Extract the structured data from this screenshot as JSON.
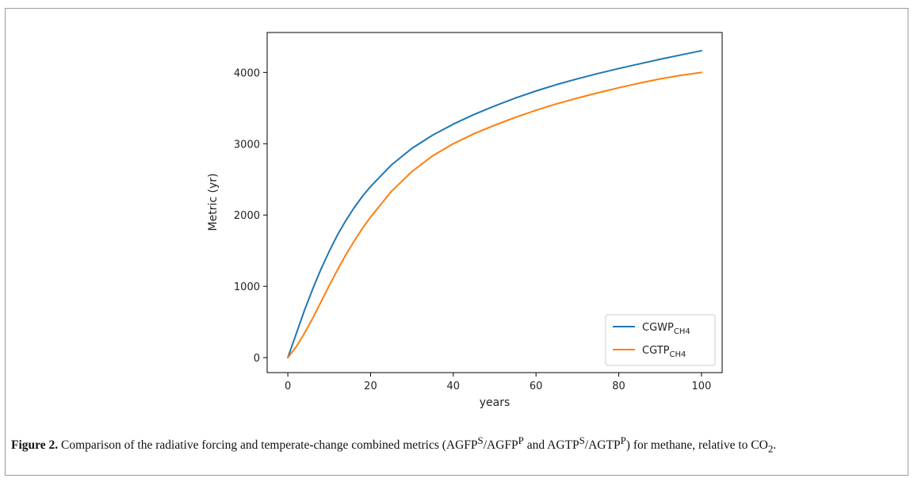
{
  "chart_data": {
    "type": "line",
    "xlabel": "years",
    "ylabel": "Metric (yr)",
    "xlim": [
      -5,
      105
    ],
    "ylim": [
      -210,
      4560
    ],
    "xticks": [
      0,
      20,
      40,
      60,
      80,
      100
    ],
    "yticks": [
      0,
      1000,
      2000,
      3000,
      4000
    ],
    "grid": false,
    "legend_position": "lower-right",
    "x": [
      0,
      2,
      4,
      6,
      8,
      10,
      12,
      14,
      16,
      18,
      20,
      25,
      30,
      35,
      40,
      45,
      50,
      55,
      60,
      65,
      70,
      75,
      80,
      85,
      90,
      95,
      100
    ],
    "series": [
      {
        "name": "CGWP",
        "subscript": "CH4",
        "color": "#1f77b4",
        "values": [
          0,
          330,
          660,
          960,
          1240,
          1490,
          1720,
          1920,
          2100,
          2260,
          2400,
          2700,
          2935,
          3120,
          3275,
          3410,
          3530,
          3640,
          3740,
          3830,
          3910,
          3985,
          4055,
          4120,
          4185,
          4245,
          4305
        ]
      },
      {
        "name": "CGTP",
        "subscript": "CH4",
        "color": "#ff7f0e",
        "values": [
          0,
          150,
          340,
          550,
          780,
          1010,
          1230,
          1440,
          1630,
          1810,
          1970,
          2330,
          2610,
          2830,
          3000,
          3140,
          3260,
          3370,
          3470,
          3560,
          3640,
          3715,
          3785,
          3850,
          3910,
          3960,
          4000
        ]
      }
    ]
  },
  "caption": {
    "label": "Figure 2.",
    "text_1": " Comparison of the radiative forcing and temperate-change combined metrics (AGFP",
    "sup_1": "S",
    "text_2": "/AGFP",
    "sup_2": "P",
    "text_3": " and AGTP",
    "sup_3": "S",
    "text_4": "/AGTP",
    "sup_4": "P",
    "text_5": ") for methane, relative to CO",
    "sub_1": "2",
    "text_6": "."
  }
}
